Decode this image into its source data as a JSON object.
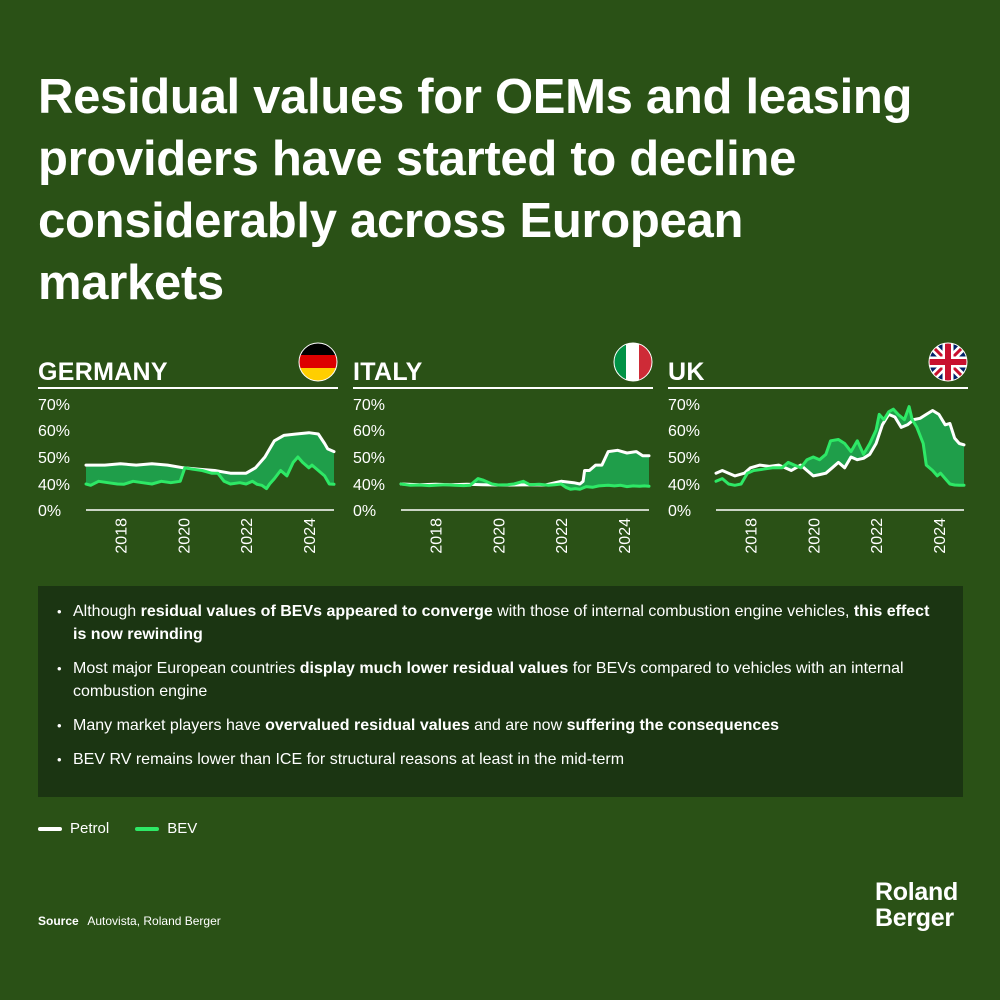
{
  "title": "Residual values for OEMs and leasing providers have started to decline considerably across European markets",
  "colors": {
    "background": "#2a5116",
    "petrol": "#ffffff",
    "bev": "#2ee866",
    "gap_fill": "#1f9e4a",
    "box": "#1b3512"
  },
  "legend": [
    {
      "label": "Petrol",
      "color": "#ffffff"
    },
    {
      "label": "BEV",
      "color": "#2ee866"
    }
  ],
  "bullets": [
    [
      {
        "t": "Although ",
        "b": false
      },
      {
        "t": "residual values of BEVs appeared to converge",
        "b": true
      },
      {
        "t": " with those of internal combustion engine vehicles, ",
        "b": false
      },
      {
        "t": "this effect is now rewinding",
        "b": true
      }
    ],
    [
      {
        "t": "Most major European countries ",
        "b": false
      },
      {
        "t": "display much lower residual values",
        "b": true
      },
      {
        "t": " for BEVs compared to vehicles with an internal combustion engine",
        "b": false
      }
    ],
    [
      {
        "t": "Many market players have ",
        "b": false
      },
      {
        "t": "overvalued residual values",
        "b": true
      },
      {
        "t": " and are now ",
        "b": false
      },
      {
        "t": "suffering the consequences",
        "b": true
      }
    ],
    [
      {
        "t": "BEV RV remains lower than ICE for structural reasons at least in the mid-term",
        "b": false
      }
    ]
  ],
  "source": {
    "label": "Source",
    "text": "Autovista, Roland Berger"
  },
  "logo": {
    "line1": "Roland",
    "line2": "Berger"
  },
  "chart_data": [
    {
      "type": "line",
      "name": "GERMANY",
      "flag": "germany-flag",
      "xlim": [
        2016.9,
        2024.8
      ],
      "ylim": [
        0,
        70
      ],
      "yticks": [
        "0%",
        "40%",
        "50%",
        "60%",
        "70%"
      ],
      "ytick_values": [
        0,
        40,
        50,
        60,
        70
      ],
      "xticks": [
        "2018",
        "2020",
        "2022",
        "2024"
      ],
      "xtick_values": [
        2018,
        2020,
        2022,
        2024
      ],
      "shade_between": true,
      "series": [
        {
          "name": "Petrol",
          "points": [
            [
              2016.9,
              47
            ],
            [
              2017.5,
              47
            ],
            [
              2018.0,
              47.5
            ],
            [
              2018.5,
              47
            ],
            [
              2019.0,
              47.5
            ],
            [
              2019.5,
              47
            ],
            [
              2020.0,
              46
            ],
            [
              2020.5,
              45.5
            ],
            [
              2021.0,
              45
            ],
            [
              2021.5,
              44
            ],
            [
              2022.0,
              44
            ],
            [
              2022.3,
              46
            ],
            [
              2022.6,
              50
            ],
            [
              2022.9,
              56
            ],
            [
              2023.2,
              58
            ],
            [
              2023.6,
              58.5
            ],
            [
              2024.0,
              59
            ],
            [
              2024.3,
              58.5
            ],
            [
              2024.5,
              55
            ],
            [
              2024.6,
              53
            ],
            [
              2024.8,
              52
            ]
          ]
        },
        {
          "name": "BEV",
          "points": [
            [
              2016.9,
              40
            ],
            [
              2017.05,
              38
            ],
            [
              2017.3,
              41
            ],
            [
              2017.6,
              40.5
            ],
            [
              2017.9,
              40
            ],
            [
              2018.1,
              39.5
            ],
            [
              2018.4,
              41
            ],
            [
              2018.7,
              40.5
            ],
            [
              2019.0,
              40
            ],
            [
              2019.3,
              41
            ],
            [
              2019.6,
              40.5
            ],
            [
              2019.9,
              41
            ],
            [
              2020.05,
              46
            ],
            [
              2020.3,
              45.5
            ],
            [
              2020.6,
              45
            ],
            [
              2020.9,
              44
            ],
            [
              2021.1,
              44
            ],
            [
              2021.3,
              41
            ],
            [
              2021.5,
              40
            ],
            [
              2021.8,
              40.5
            ],
            [
              2022.0,
              40
            ],
            [
              2022.2,
              41
            ],
            [
              2022.35,
              39.5
            ],
            [
              2022.5,
              38
            ],
            [
              2022.65,
              33
            ],
            [
              2022.75,
              40
            ],
            [
              2022.9,
              42
            ],
            [
              2023.1,
              45
            ],
            [
              2023.3,
              43
            ],
            [
              2023.5,
              48
            ],
            [
              2023.65,
              50
            ],
            [
              2023.8,
              48
            ],
            [
              2024.0,
              46
            ],
            [
              2024.1,
              47
            ],
            [
              2024.3,
              45
            ],
            [
              2024.5,
              43
            ],
            [
              2024.65,
              40
            ],
            [
              2024.8,
              39.5
            ]
          ]
        }
      ]
    },
    {
      "type": "line",
      "name": "ITALY",
      "flag": "italy-flag",
      "xlim": [
        2016.9,
        2024.8
      ],
      "ylim": [
        0,
        70
      ],
      "yticks": [
        "0%",
        "40%",
        "50%",
        "60%",
        "70%"
      ],
      "ytick_values": [
        0,
        40,
        50,
        60,
        70
      ],
      "xticks": [
        "2018",
        "2020",
        "2022",
        "2024"
      ],
      "xtick_values": [
        2018,
        2020,
        2022,
        2024
      ],
      "shade_between": true,
      "series": [
        {
          "name": "Petrol",
          "points": [
            [
              2016.9,
              40
            ],
            [
              2017.5,
              39
            ],
            [
              2018.0,
              39.5
            ],
            [
              2018.5,
              39
            ],
            [
              2019.0,
              39.5
            ],
            [
              2019.5,
              39
            ],
            [
              2020.0,
              38.5
            ],
            [
              2020.5,
              38.5
            ],
            [
              2021.0,
              39
            ],
            [
              2021.5,
              38.5
            ],
            [
              2022.0,
              41
            ],
            [
              2022.4,
              40.5
            ],
            [
              2022.6,
              40
            ],
            [
              2022.7,
              41
            ],
            [
              2022.75,
              45
            ],
            [
              2022.9,
              45
            ],
            [
              2023.1,
              47
            ],
            [
              2023.3,
              47
            ],
            [
              2023.5,
              52
            ],
            [
              2023.8,
              52.5
            ],
            [
              2024.1,
              51.5
            ],
            [
              2024.4,
              52
            ],
            [
              2024.6,
              50.5
            ],
            [
              2024.8,
              50.5
            ]
          ]
        },
        {
          "name": "BEV",
          "points": [
            [
              2016.9,
              40
            ],
            [
              2017.2,
              38
            ],
            [
              2017.5,
              38.5
            ],
            [
              2017.8,
              37.5
            ],
            [
              2018.0,
              38
            ],
            [
              2018.3,
              39
            ],
            [
              2018.6,
              38
            ],
            [
              2018.9,
              37.5
            ],
            [
              2019.1,
              38
            ],
            [
              2019.35,
              42
            ],
            [
              2019.5,
              41.5
            ],
            [
              2019.8,
              40
            ],
            [
              2020.0,
              38.5
            ],
            [
              2020.3,
              39
            ],
            [
              2020.5,
              40
            ],
            [
              2020.8,
              41
            ],
            [
              2021.0,
              39
            ],
            [
              2021.3,
              39.5
            ],
            [
              2021.6,
              38
            ],
            [
              2021.8,
              39
            ],
            [
              2022.0,
              40
            ],
            [
              2022.15,
              35
            ],
            [
              2022.3,
              32
            ],
            [
              2022.45,
              33
            ],
            [
              2022.6,
              32
            ],
            [
              2022.8,
              36
            ],
            [
              2023.0,
              35
            ],
            [
              2023.2,
              37
            ],
            [
              2023.5,
              38
            ],
            [
              2023.7,
              37
            ],
            [
              2023.9,
              38
            ],
            [
              2024.1,
              36
            ],
            [
              2024.3,
              37
            ],
            [
              2024.5,
              36.5
            ],
            [
              2024.65,
              37
            ],
            [
              2024.8,
              36.5
            ]
          ]
        }
      ]
    },
    {
      "type": "line",
      "name": "UK",
      "flag": "uk-flag",
      "xlim": [
        2016.9,
        2024.8
      ],
      "ylim": [
        0,
        70
      ],
      "yticks": [
        "0%",
        "40%",
        "50%",
        "60%",
        "70%"
      ],
      "ytick_values": [
        0,
        40,
        50,
        60,
        70
      ],
      "xticks": [
        "2018",
        "2020",
        "2022",
        "2024"
      ],
      "xtick_values": [
        2018,
        2020,
        2022,
        2024
      ],
      "shade_between": "bev_above_petrol_and_after_2023",
      "series": [
        {
          "name": "Petrol",
          "points": [
            [
              2016.9,
              44
            ],
            [
              2017.1,
              45
            ],
            [
              2017.3,
              44
            ],
            [
              2017.5,
              43
            ],
            [
              2017.8,
              44
            ],
            [
              2018.0,
              46
            ],
            [
              2018.3,
              47
            ],
            [
              2018.6,
              46.5
            ],
            [
              2018.9,
              47
            ],
            [
              2019.1,
              46
            ],
            [
              2019.3,
              45
            ],
            [
              2019.6,
              47
            ],
            [
              2019.8,
              45
            ],
            [
              2020.0,
              43
            ],
            [
              2020.2,
              43.5
            ],
            [
              2020.4,
              44
            ],
            [
              2020.6,
              46
            ],
            [
              2020.8,
              48
            ],
            [
              2021.0,
              46
            ],
            [
              2021.2,
              50
            ],
            [
              2021.4,
              49
            ],
            [
              2021.6,
              49.5
            ],
            [
              2021.8,
              51
            ],
            [
              2022.0,
              55
            ],
            [
              2022.2,
              62
            ],
            [
              2022.4,
              66
            ],
            [
              2022.6,
              65
            ],
            [
              2022.8,
              61
            ],
            [
              2023.0,
              62
            ],
            [
              2023.2,
              64
            ],
            [
              2023.4,
              64.5
            ],
            [
              2023.6,
              66
            ],
            [
              2023.8,
              67.5
            ],
            [
              2024.0,
              66
            ],
            [
              2024.2,
              62
            ],
            [
              2024.35,
              62.5
            ],
            [
              2024.5,
              57
            ],
            [
              2024.65,
              55
            ],
            [
              2024.8,
              54.5
            ]
          ]
        },
        {
          "name": "BEV",
          "points": [
            [
              2016.9,
              41
            ],
            [
              2017.1,
              42
            ],
            [
              2017.3,
              40
            ],
            [
              2017.5,
              38
            ],
            [
              2017.7,
              40
            ],
            [
              2017.9,
              44
            ],
            [
              2018.1,
              45
            ],
            [
              2018.4,
              45.5
            ],
            [
              2018.7,
              46
            ],
            [
              2019.0,
              46
            ],
            [
              2019.2,
              48
            ],
            [
              2019.4,
              47
            ],
            [
              2019.6,
              46
            ],
            [
              2019.8,
              49
            ],
            [
              2020.0,
              50
            ],
            [
              2020.2,
              49
            ],
            [
              2020.4,
              51
            ],
            [
              2020.55,
              56
            ],
            [
              2020.8,
              56.5
            ],
            [
              2021.0,
              55
            ],
            [
              2021.2,
              52
            ],
            [
              2021.4,
              56
            ],
            [
              2021.6,
              51
            ],
            [
              2021.8,
              55
            ],
            [
              2022.0,
              60
            ],
            [
              2022.1,
              66
            ],
            [
              2022.25,
              64
            ],
            [
              2022.4,
              67
            ],
            [
              2022.55,
              68
            ],
            [
              2022.7,
              66
            ],
            [
              2022.9,
              64
            ],
            [
              2023.05,
              69
            ],
            [
              2023.15,
              64
            ],
            [
              2023.3,
              61
            ],
            [
              2023.5,
              55
            ],
            [
              2023.6,
              47
            ],
            [
              2023.8,
              45
            ],
            [
              2023.95,
              43
            ],
            [
              2024.05,
              44
            ],
            [
              2024.2,
              42
            ],
            [
              2024.35,
              40
            ],
            [
              2024.5,
              38.5
            ],
            [
              2024.65,
              38
            ],
            [
              2024.8,
              38
            ]
          ]
        }
      ]
    }
  ]
}
